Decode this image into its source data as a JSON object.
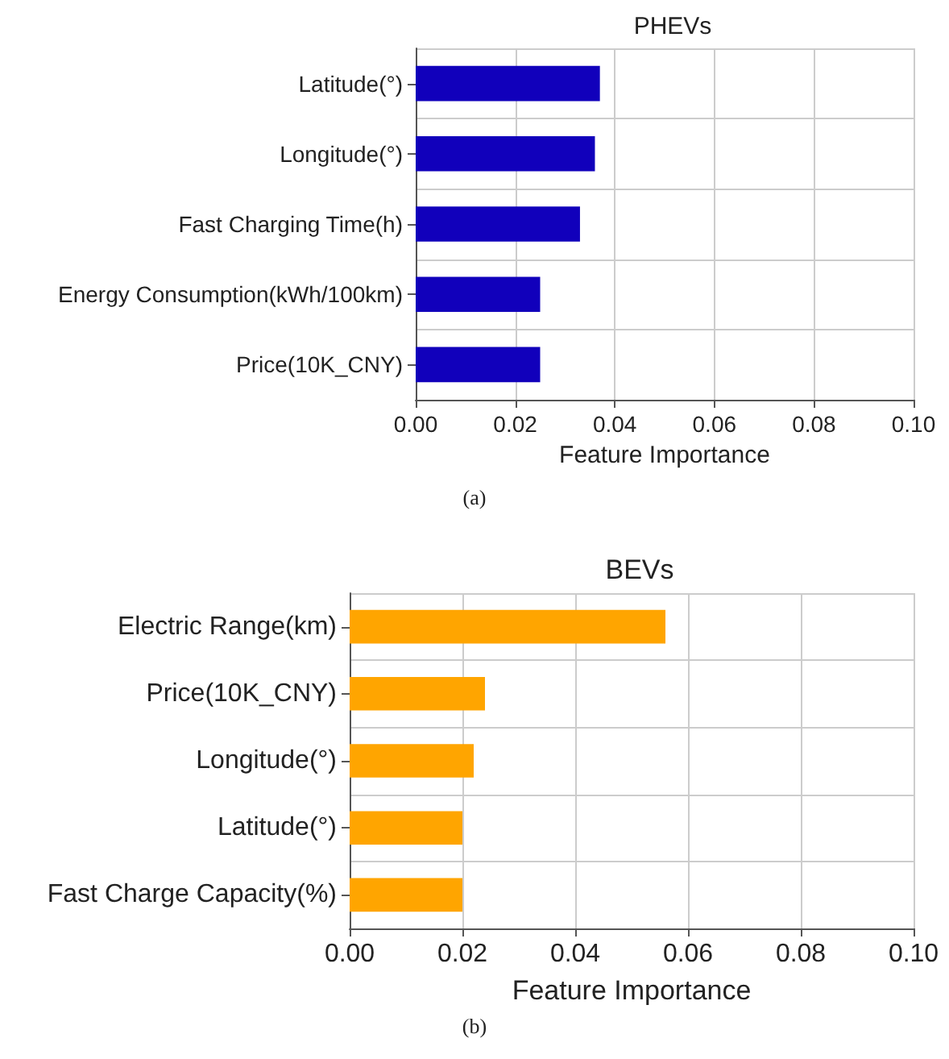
{
  "chart_data": [
    {
      "type": "bar",
      "orientation": "horizontal",
      "title": "PHEVs",
      "xlabel": "Feature Importance",
      "annotations": [
        "(a)"
      ],
      "categories": [
        "Latitude(°)",
        "Longitude(°)",
        "Fast Charging Time(h)",
        "Energy Consumption(kWh/100km)",
        "Price(10K_CNY)"
      ],
      "values": [
        0.037,
        0.036,
        0.033,
        0.025,
        0.025
      ],
      "color": "#1100bb",
      "xlim": [
        0,
        0.1
      ],
      "xticks": [
        {
          "value": 0,
          "label": "0.00"
        },
        {
          "value": 0.02,
          "label": "0.02"
        },
        {
          "value": 0.04,
          "label": "0.04"
        },
        {
          "value": 0.06,
          "label": "0.06"
        },
        {
          "value": 0.08,
          "label": "0.08"
        },
        {
          "value": 0.1,
          "label": "0.10"
        }
      ],
      "grid": true
    },
    {
      "type": "bar",
      "orientation": "horizontal",
      "title": "BEVs",
      "xlabel": "Feature Importance",
      "annotations": [
        "(b)"
      ],
      "categories": [
        "Electric Range(km)",
        "Price(10K_CNY)",
        "Longitude(°)",
        "Latitude(°)",
        "Fast Charge Capacity(%)"
      ],
      "values": [
        0.056,
        0.024,
        0.022,
        0.02,
        0.02
      ],
      "color": "#ffa500",
      "xlim": [
        0,
        0.1
      ],
      "xticks": [
        {
          "value": 0,
          "label": "0.00"
        },
        {
          "value": 0.02,
          "label": "0.02"
        },
        {
          "value": 0.04,
          "label": "0.04"
        },
        {
          "value": 0.06,
          "label": "0.06"
        },
        {
          "value": 0.08,
          "label": "0.08"
        },
        {
          "value": 0.1,
          "label": "0.10"
        }
      ],
      "grid": true
    }
  ]
}
